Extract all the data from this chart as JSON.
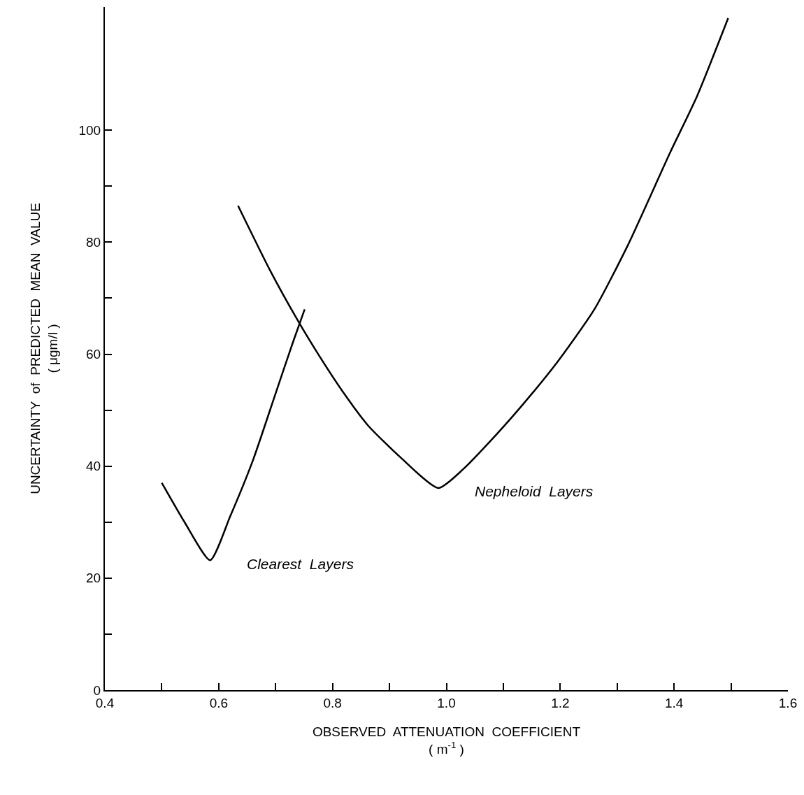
{
  "chart_data": {
    "type": "line",
    "xlabel": "OBSERVED  ATTENUATION  COEFFICIENT\n( m$^{-1}$ )",
    "ylabel": "UNCERTAINTY  of  PREDICTED  MEAN  VALUE\n( μgm/l )",
    "xlim": [
      0.4,
      1.6
    ],
    "ylim": [
      0,
      122
    ],
    "xticks": [
      0.4,
      {
        "value": 0.5,
        "label": null
      },
      0.6,
      {
        "value": 0.7,
        "label": null
      },
      0.8,
      {
        "value": 0.9,
        "label": null
      },
      {
        "value": 1,
        "label": "1.0"
      },
      {
        "value": 1.1,
        "label": null
      },
      1.2,
      {
        "value": 1.3,
        "label": null
      },
      1.4,
      {
        "value": 1.5,
        "label": null
      },
      1.6
    ],
    "yticks": [
      0,
      {
        "value": 10,
        "label": null
      },
      20,
      {
        "value": 30,
        "label": null
      },
      40,
      {
        "value": 50,
        "label": null
      },
      60,
      {
        "value": 70,
        "label": null
      },
      80,
      {
        "value": 90,
        "label": null
      },
      100
    ],
    "grid": false,
    "legend": false,
    "marker": "none",
    "line_style": "solid",
    "series": [
      {
        "name": "Clearest  Layers",
        "color": "#000000",
        "x": [
          0.5,
          0.54,
          0.585,
          0.62,
          0.66,
          0.7,
          0.73,
          0.751
        ],
        "values": [
          37,
          30,
          23.2,
          31,
          41,
          53,
          62,
          68
        ]
      },
      {
        "name": "Nepheloid  Layers",
        "color": "#000000",
        "x": [
          0.634,
          0.69,
          0.739,
          0.776,
          0.82,
          0.862,
          0.92,
          0.986,
          1.03,
          1.072,
          1.13,
          1.195,
          1.26,
          1.319,
          1.393,
          1.44,
          1.495
        ],
        "values": [
          86.5,
          75,
          66,
          59.8,
          53,
          47.3,
          41.5,
          36.1,
          39.5,
          43.9,
          50.5,
          58.6,
          68,
          79.5,
          96,
          106,
          120
        ]
      }
    ]
  }
}
